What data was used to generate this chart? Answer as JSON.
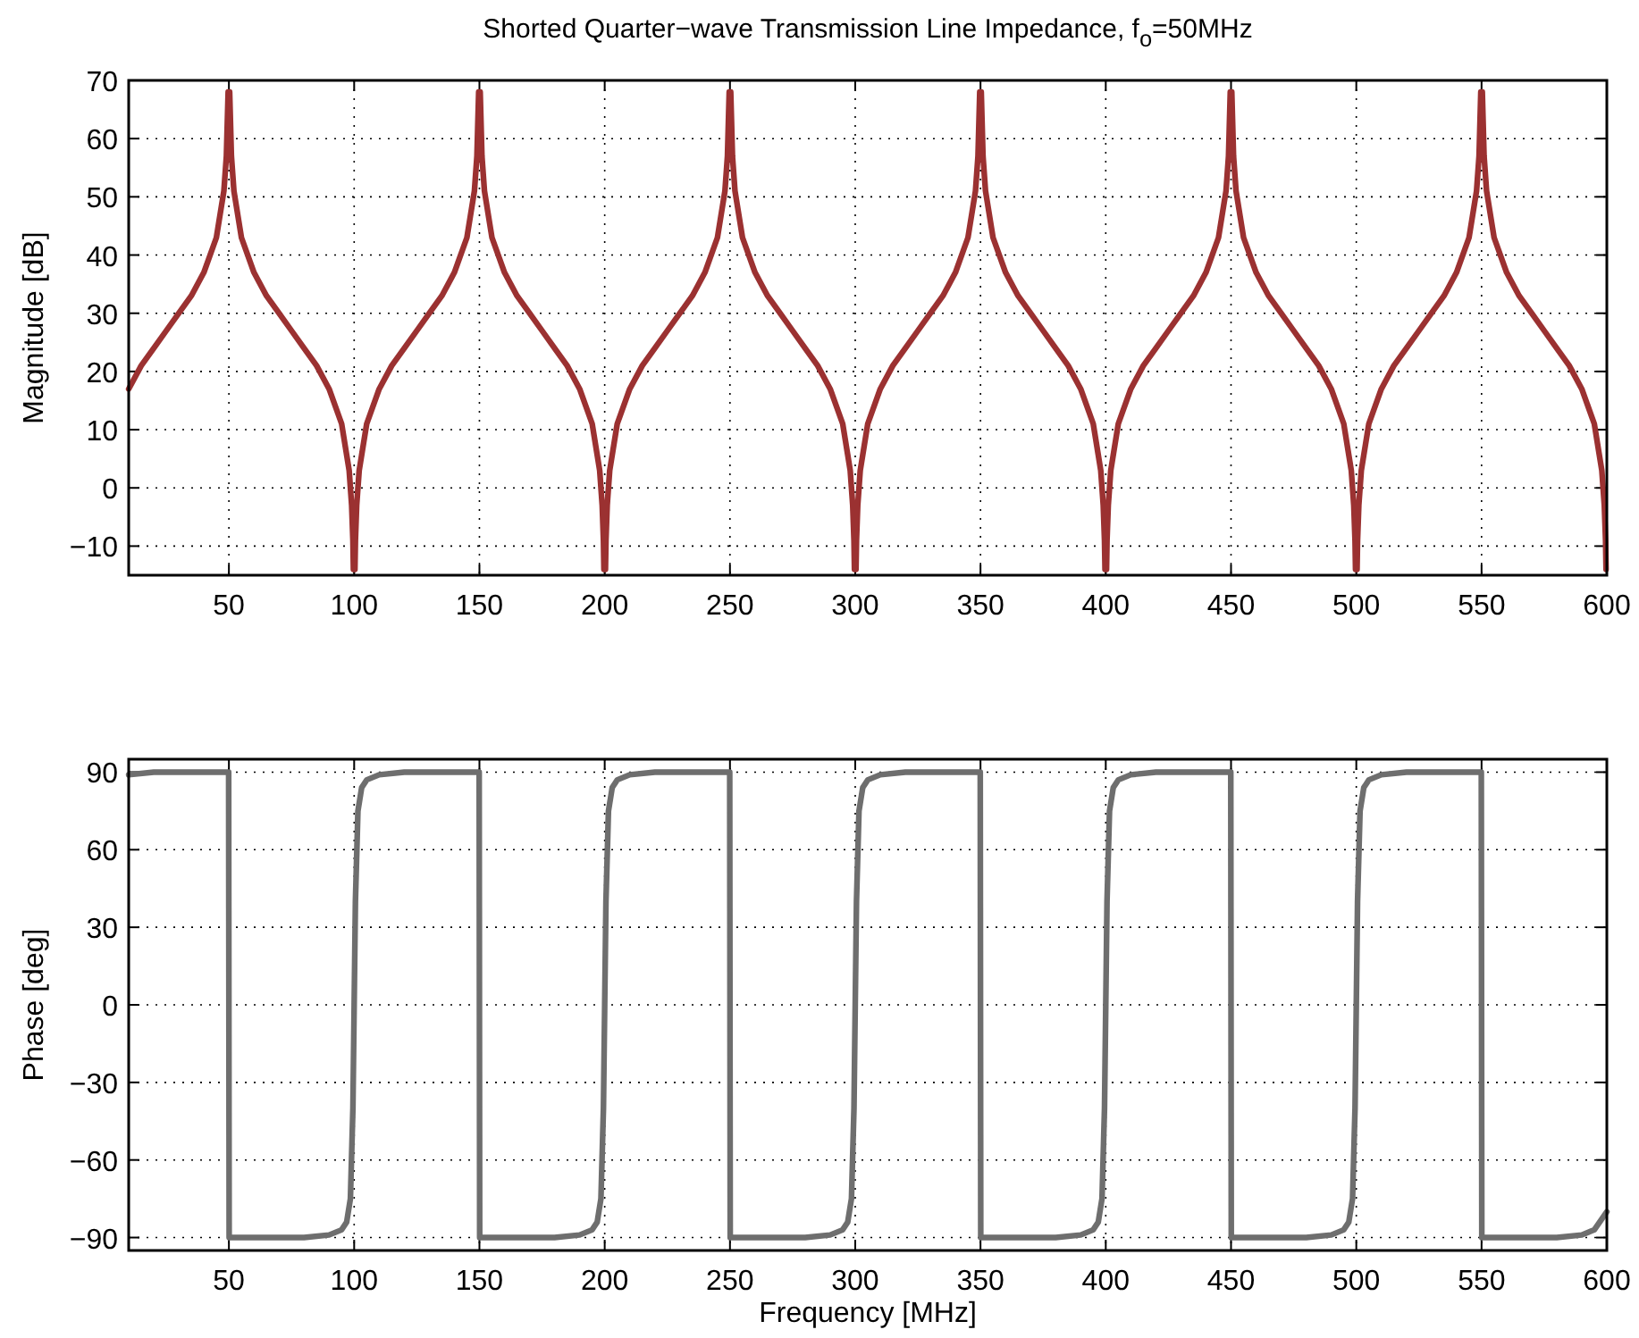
{
  "chart_data": [
    {
      "type": "line",
      "title": "Shorted Quarter−wave Transmission Line Impedance, f$_{o}$=50MHz",
      "ylabel": "Magnitude [dB]",
      "xlim": [
        10,
        600
      ],
      "ylim": [
        -15,
        70
      ],
      "xticks": [
        50,
        100,
        150,
        200,
        250,
        300,
        350,
        400,
        450,
        500,
        550,
        600
      ],
      "yticks": [
        -10,
        0,
        10,
        20,
        30,
        40,
        50,
        60,
        70
      ],
      "grid": true,
      "x": [
        10,
        15,
        20,
        25,
        30,
        35,
        40,
        45,
        48,
        49,
        49.7,
        50,
        50.3,
        51,
        52,
        55,
        60,
        65,
        70,
        75,
        80,
        85,
        90,
        95,
        98,
        99,
        99.5,
        99.7,
        100,
        100.3,
        100.5,
        101,
        102,
        105,
        110,
        115,
        120,
        125,
        130,
        135,
        140,
        145,
        148,
        149,
        149.7,
        150,
        150.3,
        151,
        152,
        155,
        160,
        165,
        170,
        175,
        180,
        185,
        190,
        195,
        198,
        199,
        199.5,
        199.7,
        200,
        200.3,
        200.5,
        201,
        202,
        205,
        210,
        215,
        220,
        225,
        230,
        235,
        240,
        245,
        248,
        249,
        249.7,
        250,
        250.3,
        251,
        252,
        255,
        260,
        265,
        270,
        275,
        280,
        285,
        290,
        295,
        298,
        299,
        299.5,
        299.7,
        300,
        300.3,
        300.5,
        301,
        302,
        305,
        310,
        315,
        320,
        325,
        330,
        335,
        340,
        345,
        348,
        349,
        349.7,
        350,
        350.3,
        351,
        352,
        355,
        360,
        365,
        370,
        375,
        380,
        385,
        390,
        395,
        398,
        399,
        399.5,
        399.7,
        400,
        400.3,
        400.5,
        401,
        402,
        405,
        410,
        415,
        420,
        425,
        430,
        435,
        440,
        445,
        448,
        449,
        449.7,
        450,
        450.3,
        451,
        452,
        455,
        460,
        465,
        470,
        475,
        480,
        485,
        490,
        495,
        498,
        499,
        499.5,
        499.7,
        500,
        500.3,
        500.5,
        501,
        502,
        505,
        510,
        515,
        520,
        525,
        530,
        535,
        540,
        545,
        548,
        549,
        549.7,
        550,
        550.3,
        551,
        552,
        555,
        560,
        565,
        570,
        575,
        580,
        585,
        590,
        595,
        598,
        599,
        599.5,
        599.7
      ],
      "series": [
        {
          "color": "#9b3131",
          "values": [
            17,
            21,
            24,
            27,
            30,
            33,
            37,
            43,
            51,
            57,
            68,
            null,
            68,
            57,
            51,
            43,
            37,
            33,
            30,
            27,
            24,
            21,
            17,
            11,
            3,
            -3,
            -9,
            -14,
            null,
            -14,
            -9,
            -3,
            3,
            11,
            17,
            21,
            24,
            27,
            30,
            33,
            37,
            43,
            51,
            57,
            68,
            null,
            68,
            57,
            51,
            43,
            37,
            33,
            30,
            27,
            24,
            21,
            17,
            11,
            3,
            -3,
            -9,
            -14,
            null,
            -14,
            -9,
            -3,
            3,
            11,
            17,
            21,
            24,
            27,
            30,
            33,
            37,
            43,
            51,
            57,
            68,
            null,
            68,
            57,
            51,
            43,
            37,
            33,
            30,
            27,
            24,
            21,
            17,
            11,
            3,
            -3,
            -9,
            -14,
            null,
            -14,
            -9,
            -3,
            3,
            11,
            17,
            21,
            24,
            27,
            30,
            33,
            37,
            43,
            51,
            57,
            68,
            null,
            68,
            57,
            51,
            43,
            37,
            33,
            30,
            27,
            24,
            21,
            17,
            11,
            3,
            -3,
            -9,
            -14,
            null,
            -14,
            -9,
            -3,
            3,
            11,
            17,
            21,
            24,
            27,
            30,
            33,
            37,
            43,
            51,
            57,
            68,
            null,
            68,
            57,
            51,
            43,
            37,
            33,
            30,
            27,
            24,
            21,
            17,
            11,
            3,
            -3,
            -9,
            -14,
            null,
            -14,
            -9,
            -3,
            3,
            11,
            17,
            21,
            24,
            27,
            30,
            33,
            37,
            43,
            51,
            57,
            68,
            null,
            68,
            57,
            51,
            43,
            37,
            33,
            30,
            27,
            24,
            21,
            17,
            11,
            3,
            -3,
            -9,
            -14
          ]
        }
      ]
    },
    {
      "type": "line",
      "xlabel": "Frequency [MHz]",
      "ylabel": "Phase [deg]",
      "xlim": [
        10,
        600
      ],
      "ylim": [
        -95,
        95
      ],
      "xticks": [
        50,
        100,
        150,
        200,
        250,
        300,
        350,
        400,
        450,
        500,
        550,
        600
      ],
      "yticks": [
        -90,
        -60,
        -30,
        0,
        30,
        60,
        90
      ],
      "grid": true,
      "x": [
        10,
        20,
        49.9,
        50.1,
        80,
        90,
        95,
        97,
        98.5,
        99.5,
        100,
        100.5,
        101.5,
        103,
        105,
        110,
        120,
        149.9,
        150.1,
        180,
        190,
        195,
        197,
        198.5,
        199.5,
        200,
        200.5,
        201.5,
        203,
        205,
        210,
        220,
        249.9,
        250.1,
        280,
        290,
        295,
        297,
        298.5,
        299.5,
        300,
        300.5,
        301.5,
        303,
        305,
        310,
        320,
        349.9,
        350.1,
        380,
        390,
        395,
        397,
        398.5,
        399.5,
        400,
        400.5,
        401.5,
        403,
        405,
        410,
        420,
        449.9,
        450.1,
        480,
        490,
        495,
        497,
        498.5,
        499.5,
        500,
        500.5,
        501.5,
        503,
        505,
        510,
        520,
        549.9,
        550.1,
        580,
        590,
        595,
        600
      ],
      "series": [
        {
          "color": "#6e6e6e",
          "values": [
            89,
            90,
            90,
            -90,
            -90,
            -89,
            -87,
            -84,
            -75,
            -40,
            0,
            40,
            75,
            84,
            87,
            89,
            90,
            90,
            -90,
            -90,
            -89,
            -87,
            -84,
            -75,
            -40,
            0,
            40,
            75,
            84,
            87,
            89,
            90,
            90,
            -90,
            -90,
            -89,
            -87,
            -84,
            -75,
            -40,
            0,
            40,
            75,
            84,
            87,
            89,
            90,
            90,
            -90,
            -90,
            -89,
            -87,
            -84,
            -75,
            -40,
            0,
            40,
            75,
            84,
            87,
            89,
            90,
            90,
            -90,
            -90,
            -89,
            -87,
            -84,
            -75,
            -40,
            0,
            40,
            75,
            84,
            87,
            89,
            90,
            90,
            -90,
            -90,
            -89,
            -87,
            -80
          ]
        }
      ]
    }
  ]
}
